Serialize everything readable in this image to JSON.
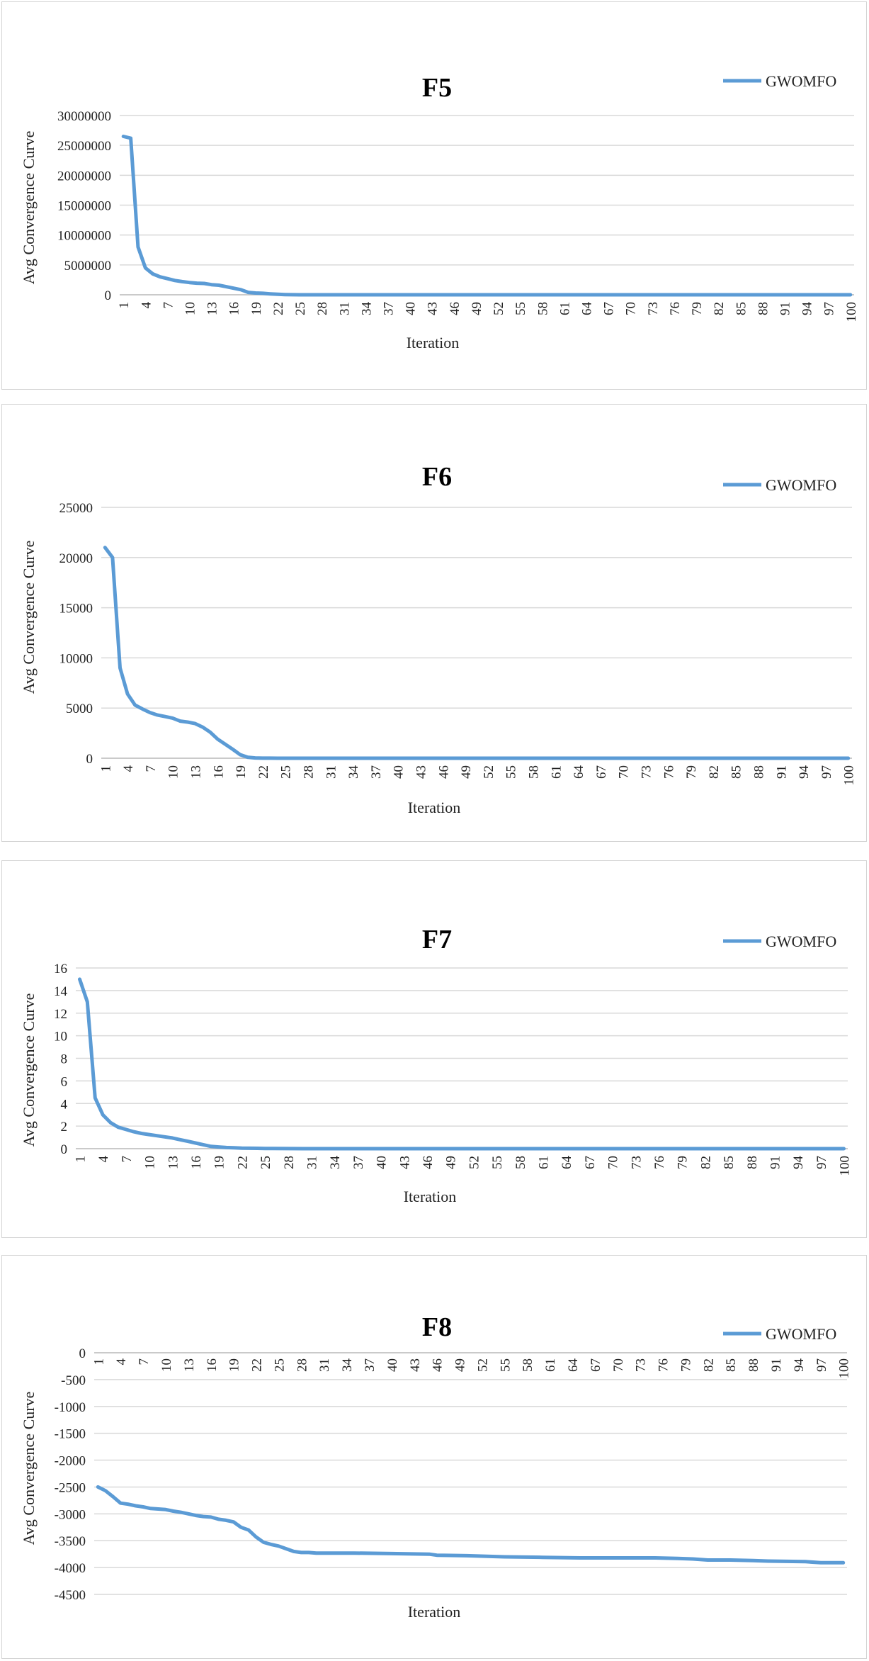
{
  "colors": {
    "line": "#5B9BD5",
    "grid": "#D9D9D9",
    "axis": "#BFBFBF"
  },
  "chart_data": [
    {
      "type": "line",
      "title": "F5",
      "xlabel": "Iteration",
      "ylabel": "Avg Convergence Curve",
      "ylim": [
        0,
        30000000
      ],
      "yticks": [
        0,
        5000000,
        10000000,
        15000000,
        20000000,
        25000000,
        30000000
      ],
      "ytick_labels": [
        "0",
        "5000000",
        "10000000",
        "15000000",
        "20000000",
        "25000000",
        "30000000"
      ],
      "x": [
        1,
        2,
        3,
        4,
        5,
        6,
        7,
        8,
        9,
        10,
        11,
        12,
        13,
        14,
        15,
        16,
        17,
        18,
        19,
        20,
        21,
        22,
        23,
        24,
        25,
        100
      ],
      "series": [
        {
          "name": "GWOMFO",
          "values": [
            26500000,
            26200000,
            8000000,
            4500000,
            3500000,
            3000000,
            2700000,
            2400000,
            2200000,
            2050000,
            1950000,
            1900000,
            1700000,
            1600000,
            1350000,
            1100000,
            850000,
            400000,
            300000,
            250000,
            150000,
            80000,
            40000,
            10000,
            0,
            0
          ]
        }
      ],
      "legend_position": "top-right"
    },
    {
      "type": "line",
      "title": "F6",
      "xlabel": "Iteration",
      "ylabel": "Avg Convergence Curve",
      "ylim": [
        0,
        25000
      ],
      "yticks": [
        0,
        5000,
        10000,
        15000,
        20000,
        25000
      ],
      "ytick_labels": [
        "0",
        "5000",
        "10000",
        "15000",
        "20000",
        "25000"
      ],
      "x": [
        1,
        2,
        3,
        4,
        5,
        6,
        7,
        8,
        9,
        10,
        11,
        12,
        13,
        14,
        15,
        16,
        17,
        18,
        19,
        20,
        21,
        22,
        23,
        24,
        100
      ],
      "series": [
        {
          "name": "GWOMFO",
          "values": [
            21000,
            20000,
            9000,
            6400,
            5300,
            4900,
            4550,
            4300,
            4150,
            4000,
            3700,
            3600,
            3450,
            3100,
            2600,
            1900,
            1400,
            900,
            350,
            100,
            30,
            10,
            5,
            0,
            0
          ]
        }
      ],
      "legend_position": "top-right"
    },
    {
      "type": "line",
      "title": "F7",
      "xlabel": "Iteration",
      "ylabel": "Avg Convergence Curve",
      "ylim": [
        0,
        16
      ],
      "yticks": [
        0,
        2,
        4,
        6,
        8,
        10,
        12,
        14,
        16
      ],
      "ytick_labels": [
        "0",
        "2",
        "4",
        "6",
        "8",
        "10",
        "12",
        "14",
        "16"
      ],
      "x": [
        1,
        2,
        3,
        4,
        5,
        6,
        7,
        8,
        9,
        10,
        11,
        12,
        13,
        14,
        15,
        16,
        17,
        18,
        19,
        20,
        21,
        22,
        23,
        24,
        25,
        26,
        30,
        100
      ],
      "series": [
        {
          "name": "GWOMFO",
          "values": [
            15,
            13,
            4.5,
            3,
            2.3,
            1.9,
            1.7,
            1.5,
            1.35,
            1.25,
            1.15,
            1.05,
            0.95,
            0.8,
            0.65,
            0.5,
            0.35,
            0.2,
            0.15,
            0.1,
            0.08,
            0.05,
            0.04,
            0.03,
            0.02,
            0.01,
            0,
            0
          ]
        }
      ],
      "legend_position": "top-right"
    },
    {
      "type": "line",
      "title": "F8",
      "xlabel": "Iteration",
      "ylabel": "Avg Convergence Curve",
      "ylim": [
        -4500,
        0
      ],
      "yticks": [
        -4500,
        -4000,
        -3500,
        -3000,
        -2500,
        -2000,
        -1500,
        -1000,
        -500,
        0
      ],
      "ytick_labels": [
        "-4500",
        "-4000",
        "-3500",
        "-3000",
        "-2500",
        "-2000",
        "-1500",
        "-1000",
        "-500",
        "0"
      ],
      "x": [
        1,
        2,
        3,
        4,
        5,
        6,
        7,
        8,
        9,
        10,
        11,
        12,
        13,
        14,
        15,
        16,
        17,
        18,
        19,
        20,
        21,
        22,
        23,
        24,
        25,
        26,
        27,
        28,
        29,
        30,
        35,
        40,
        45,
        46,
        50,
        55,
        60,
        65,
        70,
        75,
        78,
        80,
        82,
        85,
        88,
        90,
        95,
        97,
        100
      ],
      "series": [
        {
          "name": "GWOMFO",
          "values": [
            -2500,
            -2570,
            -2680,
            -2800,
            -2820,
            -2850,
            -2870,
            -2900,
            -2910,
            -2920,
            -2950,
            -2970,
            -3000,
            -3030,
            -3050,
            -3060,
            -3100,
            -3120,
            -3150,
            -3250,
            -3300,
            -3430,
            -3530,
            -3570,
            -3600,
            -3650,
            -3700,
            -3720,
            -3720,
            -3730,
            -3730,
            -3740,
            -3750,
            -3770,
            -3780,
            -3800,
            -3810,
            -3820,
            -3820,
            -3820,
            -3830,
            -3840,
            -3860,
            -3860,
            -3870,
            -3880,
            -3890,
            -3910,
            -3910
          ]
        }
      ],
      "legend_position": "top-right"
    }
  ]
}
